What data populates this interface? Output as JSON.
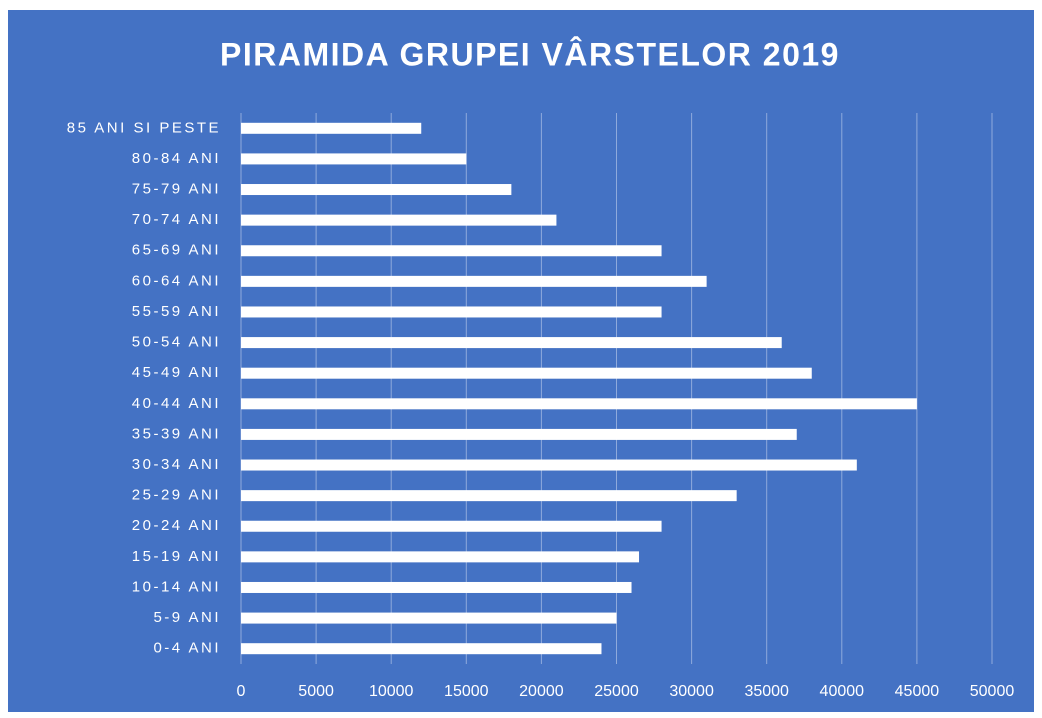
{
  "chart_data": {
    "type": "bar",
    "orientation": "horizontal",
    "title": "PIRAMIDA GRUPEI VÂRSTELOR 2019",
    "categories": [
      "85 ANI SI PESTE",
      "80-84 ANI",
      "75-79 ANI",
      "70-74 ANI",
      "65-69 ANI",
      "60-64 ANI",
      "55-59 ANI",
      "50-54 ANI",
      "45-49 ANI",
      "40-44 ANI",
      "35-39 ANI",
      "30-34 ANI",
      "25-29 ANI",
      "20-24 ANI",
      "15-19 ANI",
      "10-14 ANI",
      "5-9 ANI",
      "0-4 ANI"
    ],
    "values": [
      12000,
      15000,
      18000,
      21000,
      28000,
      31000,
      28000,
      36000,
      38000,
      45000,
      37000,
      41000,
      33000,
      28000,
      26500,
      26000,
      25000,
      24000
    ],
    "color": "#ffffff",
    "xlim": [
      0,
      50000
    ],
    "xticks": [
      0,
      5000,
      10000,
      15000,
      20000,
      25000,
      30000,
      35000,
      40000,
      45000,
      50000
    ],
    "grid": true
  }
}
